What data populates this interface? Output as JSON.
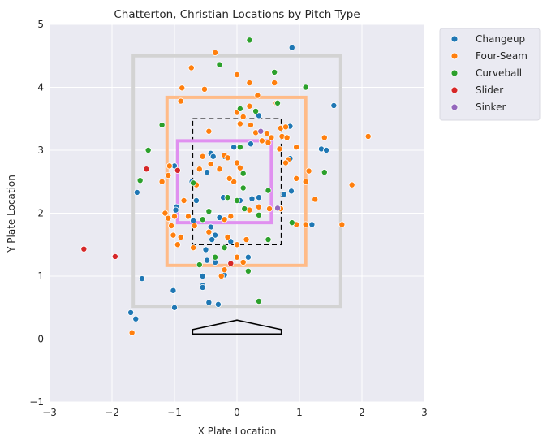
{
  "chart_data": {
    "type": "scatter",
    "title": "Chatterton, Christian Locations by Pitch Type",
    "xlabel": "X Plate Location",
    "ylabel": "Y Plate Location",
    "xlim": [
      -3,
      3
    ],
    "ylim": [
      -1,
      5
    ],
    "xticks": [
      "−3",
      "−2",
      "−1",
      "0",
      "1",
      "2",
      "3"
    ],
    "yticks": [
      "−1",
      "0",
      "1",
      "2",
      "3",
      "4",
      "5"
    ],
    "grid": true,
    "legend_position": "outside-top-right",
    "series": [
      {
        "name": "Changeup",
        "color": "#1f77b4",
        "points": [
          [
            0.88,
            4.63
          ],
          [
            1.55,
            3.71
          ],
          [
            0.35,
            3.55
          ],
          [
            0.85,
            3.38
          ],
          [
            1.35,
            3.02
          ],
          [
            1.43,
            3.0
          ],
          [
            0.85,
            2.87
          ],
          [
            0.87,
            2.35
          ],
          [
            0.75,
            2.3
          ],
          [
            1.2,
            1.82
          ],
          [
            0.35,
            2.25
          ],
          [
            0.24,
            2.23
          ],
          [
            0.05,
            2.2
          ],
          [
            -0.22,
            2.25
          ],
          [
            -0.65,
            2.2
          ],
          [
            -0.7,
            1.88
          ],
          [
            -0.97,
            2.1
          ],
          [
            -0.98,
            2.05
          ],
          [
            -1.0,
            2.75
          ],
          [
            -0.72,
            2.5
          ],
          [
            -0.42,
            2.95
          ],
          [
            -0.38,
            2.9
          ],
          [
            -0.28,
            1.93
          ],
          [
            -0.42,
            1.78
          ],
          [
            -0.05,
            3.05
          ],
          [
            0.22,
            3.1
          ],
          [
            -0.2,
            2.9
          ],
          [
            -0.35,
            1.65
          ],
          [
            -0.5,
            1.42
          ],
          [
            -0.4,
            1.58
          ],
          [
            -0.48,
            1.25
          ],
          [
            -0.35,
            1.22
          ],
          [
            -0.1,
            1.55
          ],
          [
            0.18,
            1.3
          ],
          [
            -0.55,
            1.0
          ],
          [
            -0.55,
            0.85
          ],
          [
            -0.55,
            0.82
          ],
          [
            -0.2,
            1.02
          ],
          [
            -0.3,
            0.55
          ],
          [
            -0.45,
            0.58
          ],
          [
            -1.0,
            0.5
          ],
          [
            -1.02,
            0.77
          ],
          [
            -1.52,
            0.96
          ],
          [
            -1.7,
            0.42
          ],
          [
            -1.62,
            0.32
          ],
          [
            -1.6,
            2.33
          ],
          [
            -0.48,
            2.65
          ]
        ]
      },
      {
        "name": "Four-Seam",
        "color": "#ff7f0e",
        "points": [
          [
            -0.35,
            4.55
          ],
          [
            -0.73,
            4.31
          ],
          [
            0.0,
            4.2
          ],
          [
            0.2,
            4.07
          ],
          [
            -0.52,
            3.97
          ],
          [
            -0.88,
            3.99
          ],
          [
            0.33,
            3.87
          ],
          [
            0.6,
            4.07
          ],
          [
            0.63,
            3.75
          ],
          [
            -0.9,
            3.78
          ],
          [
            0.0,
            3.6
          ],
          [
            0.2,
            3.7
          ],
          [
            0.1,
            3.53
          ],
          [
            0.22,
            3.4
          ],
          [
            -0.45,
            3.3
          ],
          [
            0.05,
            3.42
          ],
          [
            0.3,
            3.28
          ],
          [
            0.48,
            3.27
          ],
          [
            0.4,
            3.15
          ],
          [
            0.5,
            3.12
          ],
          [
            0.55,
            3.2
          ],
          [
            0.7,
            3.35
          ],
          [
            0.72,
            3.22
          ],
          [
            0.68,
            3.02
          ],
          [
            0.78,
            3.37
          ],
          [
            0.8,
            3.2
          ],
          [
            0.95,
            3.05
          ],
          [
            0.82,
            2.85
          ],
          [
            0.78,
            2.8
          ],
          [
            1.15,
            2.67
          ],
          [
            1.1,
            2.5
          ],
          [
            0.95,
            2.55
          ],
          [
            1.4,
            3.2
          ],
          [
            1.25,
            2.22
          ],
          [
            1.1,
            1.82
          ],
          [
            0.95,
            1.82
          ],
          [
            0.7,
            2.07
          ],
          [
            0.52,
            2.07
          ],
          [
            0.35,
            2.1
          ],
          [
            0.2,
            2.05
          ],
          [
            1.68,
            1.82
          ],
          [
            1.84,
            2.45
          ],
          [
            2.1,
            3.22
          ],
          [
            -0.55,
            2.9
          ],
          [
            -0.42,
            2.78
          ],
          [
            -0.28,
            2.7
          ],
          [
            -0.2,
            2.92
          ],
          [
            -0.15,
            2.88
          ],
          [
            0.0,
            2.8
          ],
          [
            0.05,
            2.72
          ],
          [
            -0.05,
            2.5
          ],
          [
            0.1,
            2.62
          ],
          [
            -0.12,
            2.55
          ],
          [
            -0.6,
            2.7
          ],
          [
            -0.65,
            2.45
          ],
          [
            -1.1,
            2.6
          ],
          [
            -1.08,
            2.75
          ],
          [
            -1.2,
            2.5
          ],
          [
            -1.15,
            2.0
          ],
          [
            -1.1,
            1.92
          ],
          [
            -1.05,
            1.8
          ],
          [
            -1.0,
            1.95
          ],
          [
            -0.85,
            2.2
          ],
          [
            -0.78,
            1.95
          ],
          [
            -0.9,
            1.62
          ],
          [
            -0.95,
            1.5
          ],
          [
            -1.02,
            1.65
          ],
          [
            -0.7,
            1.45
          ],
          [
            -0.45,
            1.7
          ],
          [
            -0.2,
            1.9
          ],
          [
            -0.15,
            1.62
          ],
          [
            0.0,
            1.5
          ],
          [
            0.15,
            1.58
          ],
          [
            0.1,
            1.22
          ],
          [
            -0.1,
            1.95
          ],
          [
            -0.2,
            1.1
          ],
          [
            0.0,
            1.3
          ],
          [
            -0.25,
            1.0
          ],
          [
            -1.68,
            0.1
          ],
          [
            -0.68,
            1.8
          ]
        ]
      },
      {
        "name": "Curveball",
        "color": "#2ca02c",
        "points": [
          [
            0.2,
            4.75
          ],
          [
            -0.28,
            4.36
          ],
          [
            0.6,
            4.24
          ],
          [
            1.1,
            4.0
          ],
          [
            0.3,
            3.62
          ],
          [
            0.05,
            3.66
          ],
          [
            0.65,
            3.75
          ],
          [
            -1.2,
            3.4
          ],
          [
            -1.42,
            3.0
          ],
          [
            0.05,
            3.05
          ],
          [
            0.1,
            2.63
          ],
          [
            0.0,
            2.2
          ],
          [
            0.5,
            2.36
          ],
          [
            0.35,
            1.97
          ],
          [
            0.1,
            2.4
          ],
          [
            -0.15,
            2.25
          ],
          [
            -0.7,
            2.48
          ],
          [
            -1.55,
            2.52
          ],
          [
            -0.45,
            2.03
          ],
          [
            -0.55,
            1.9
          ],
          [
            -0.6,
            1.18
          ],
          [
            -0.35,
            1.3
          ],
          [
            -0.2,
            1.45
          ],
          [
            0.18,
            1.08
          ],
          [
            0.5,
            1.58
          ],
          [
            0.88,
            1.85
          ],
          [
            1.4,
            2.65
          ],
          [
            0.35,
            0.6
          ],
          [
            0.12,
            2.07
          ]
        ]
      },
      {
        "name": "Slider",
        "color": "#d62728",
        "points": [
          [
            -2.45,
            1.43
          ],
          [
            -1.95,
            1.31
          ],
          [
            -1.45,
            2.7
          ],
          [
            -0.95,
            2.68
          ],
          [
            -0.1,
            1.2
          ]
        ]
      },
      {
        "name": "Sinker",
        "color": "#9467bd",
        "points": [
          [
            0.38,
            3.3
          ],
          [
            0.65,
            2.08
          ]
        ]
      }
    ],
    "shapes": {
      "outer_zone": {
        "x": [
          -1.66,
          1.66
        ],
        "y": [
          0.52,
          4.5
        ],
        "color": "#d3d3d3"
      },
      "orange_zone": {
        "x": [
          -1.12,
          1.1
        ],
        "y": [
          1.17,
          3.84
        ],
        "color": "#ffbb88"
      },
      "strike_zone": {
        "x": [
          -0.71,
          0.71
        ],
        "y": [
          1.5,
          3.5
        ],
        "color": "#000000",
        "dashed": true
      },
      "inner_zone": {
        "x": [
          -0.95,
          0.55
        ],
        "y": [
          1.85,
          3.15
        ],
        "color": "#e090f0"
      },
      "home_plate": {
        "points": [
          [
            -0.71,
            0.08
          ],
          [
            0.71,
            0.08
          ],
          [
            0.71,
            0.15
          ],
          [
            0.0,
            0.3
          ],
          [
            -0.71,
            0.15
          ]
        ],
        "color": "#000000"
      }
    }
  }
}
